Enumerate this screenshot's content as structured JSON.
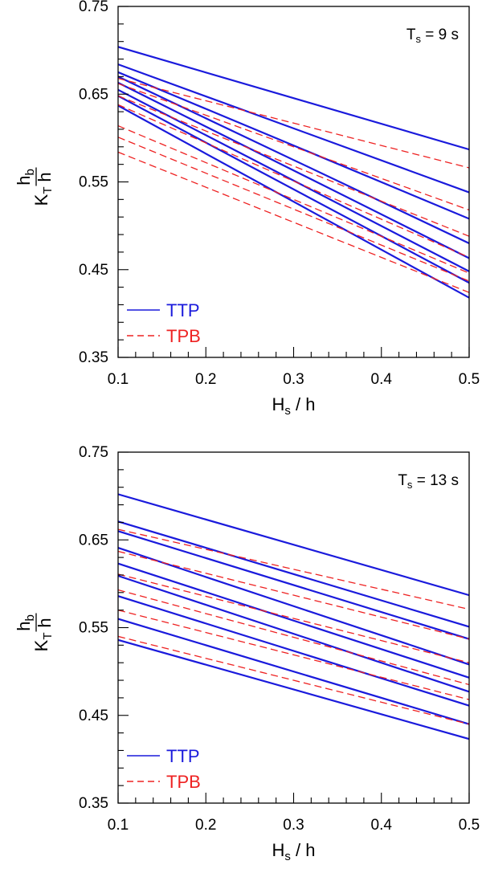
{
  "chart_data": [
    {
      "type": "line",
      "annotation": {
        "prefix": "T",
        "sub": "s",
        "suffix": " = 9 s"
      },
      "xlabel": {
        "main": "H",
        "sub": "s",
        "suffix": " / h"
      },
      "ylabel": {
        "factor": "K",
        "factor_sub": "T",
        "numerator": "h",
        "numerator_sub": "b",
        "denominator": "h"
      },
      "xlim": [
        0.1,
        0.5
      ],
      "ylim": [
        0.35,
        0.75
      ],
      "xticks": [
        "0.1",
        "0.2",
        "0.3",
        "0.4",
        "0.5"
      ],
      "yticks": [
        "0.35",
        "0.45",
        "0.55",
        "0.65",
        "0.75"
      ],
      "grid": false,
      "legend_position": "bottom-left",
      "legend": [
        {
          "label": "TTP",
          "style": "solid",
          "color": "#1a1adc"
        },
        {
          "label": "TPB",
          "style": "dashed",
          "color": "#ee2222"
        }
      ],
      "series": [
        {
          "group": "TTP",
          "x": [
            0.1,
            0.5
          ],
          "y": [
            0.704,
            0.587
          ]
        },
        {
          "group": "TTP",
          "x": [
            0.1,
            0.5
          ],
          "y": [
            0.684,
            0.538
          ]
        },
        {
          "group": "TTP",
          "x": [
            0.1,
            0.5
          ],
          "y": [
            0.675,
            0.508
          ]
        },
        {
          "group": "TTP",
          "x": [
            0.1,
            0.5
          ],
          "y": [
            0.67,
            0.48
          ]
        },
        {
          "group": "TTP",
          "x": [
            0.1,
            0.5
          ],
          "y": [
            0.663,
            0.463
          ]
        },
        {
          "group": "TTP",
          "x": [
            0.1,
            0.5
          ],
          "y": [
            0.655,
            0.448
          ]
        },
        {
          "group": "TTP",
          "x": [
            0.1,
            0.5
          ],
          "y": [
            0.648,
            0.435
          ]
        },
        {
          "group": "TTP",
          "x": [
            0.1,
            0.5
          ],
          "y": [
            0.637,
            0.418
          ]
        },
        {
          "group": "TPB",
          "x": [
            0.1,
            0.5
          ],
          "y": [
            0.668,
            0.566
          ]
        },
        {
          "group": "TPB",
          "x": [
            0.1,
            0.5
          ],
          "y": [
            0.662,
            0.518
          ]
        },
        {
          "group": "TPB",
          "x": [
            0.1,
            0.5
          ],
          "y": [
            0.648,
            0.488
          ]
        },
        {
          "group": "TPB",
          "x": [
            0.1,
            0.5
          ],
          "y": [
            0.638,
            0.464
          ]
        },
        {
          "group": "TPB",
          "x": [
            0.1,
            0.5
          ],
          "y": [
            0.614,
            0.446
          ]
        },
        {
          "group": "TPB",
          "x": [
            0.1,
            0.5
          ],
          "y": [
            0.601,
            0.437
          ]
        },
        {
          "group": "TPB",
          "x": [
            0.1,
            0.5
          ],
          "y": [
            0.584,
            0.424
          ]
        }
      ]
    },
    {
      "type": "line",
      "annotation": {
        "prefix": "T",
        "sub": "s",
        "suffix": " = 13 s"
      },
      "xlabel": {
        "main": "H",
        "sub": "s",
        "suffix": " / h"
      },
      "ylabel": {
        "factor": "K",
        "factor_sub": "T",
        "numerator": "h",
        "numerator_sub": "b",
        "denominator": "h"
      },
      "xlim": [
        0.1,
        0.5
      ],
      "ylim": [
        0.35,
        0.75
      ],
      "xticks": [
        "0.1",
        "0.2",
        "0.3",
        "0.4",
        "0.5"
      ],
      "yticks": [
        "0.35",
        "0.45",
        "0.55",
        "0.65",
        "0.75"
      ],
      "grid": false,
      "legend_position": "bottom-left",
      "legend": [
        {
          "label": "TTP",
          "style": "solid",
          "color": "#1a1adc"
        },
        {
          "label": "TPB",
          "style": "dashed",
          "color": "#ee2222"
        }
      ],
      "series": [
        {
          "group": "TTP",
          "x": [
            0.1,
            0.5
          ],
          "y": [
            0.702,
            0.587
          ]
        },
        {
          "group": "TTP",
          "x": [
            0.1,
            0.5
          ],
          "y": [
            0.671,
            0.551
          ]
        },
        {
          "group": "TTP",
          "x": [
            0.1,
            0.5
          ],
          "y": [
            0.66,
            0.537
          ]
        },
        {
          "group": "TTP",
          "x": [
            0.1,
            0.5
          ],
          "y": [
            0.641,
            0.508
          ]
        },
        {
          "group": "TTP",
          "x": [
            0.1,
            0.5
          ],
          "y": [
            0.623,
            0.493
          ]
        },
        {
          "group": "TTP",
          "x": [
            0.1,
            0.5
          ],
          "y": [
            0.609,
            0.477
          ]
        },
        {
          "group": "TTP",
          "x": [
            0.1,
            0.5
          ],
          "y": [
            0.586,
            0.461
          ]
        },
        {
          "group": "TTP",
          "x": [
            0.1,
            0.5
          ],
          "y": [
            0.56,
            0.44
          ]
        },
        {
          "group": "TTP",
          "x": [
            0.1,
            0.5
          ],
          "y": [
            0.536,
            0.423
          ]
        },
        {
          "group": "TPB",
          "x": [
            0.1,
            0.5
          ],
          "y": [
            0.662,
            0.571
          ]
        },
        {
          "group": "TPB",
          "x": [
            0.1,
            0.5
          ],
          "y": [
            0.637,
            0.537
          ]
        },
        {
          "group": "TPB",
          "x": [
            0.1,
            0.5
          ],
          "y": [
            0.611,
            0.51
          ]
        },
        {
          "group": "TPB",
          "x": [
            0.1,
            0.5
          ],
          "y": [
            0.593,
            0.485
          ]
        },
        {
          "group": "TPB",
          "x": [
            0.1,
            0.5
          ],
          "y": [
            0.57,
            0.468
          ]
        },
        {
          "group": "TPB",
          "x": [
            0.1,
            0.5
          ],
          "y": [
            0.54,
            0.44
          ]
        }
      ]
    }
  ]
}
